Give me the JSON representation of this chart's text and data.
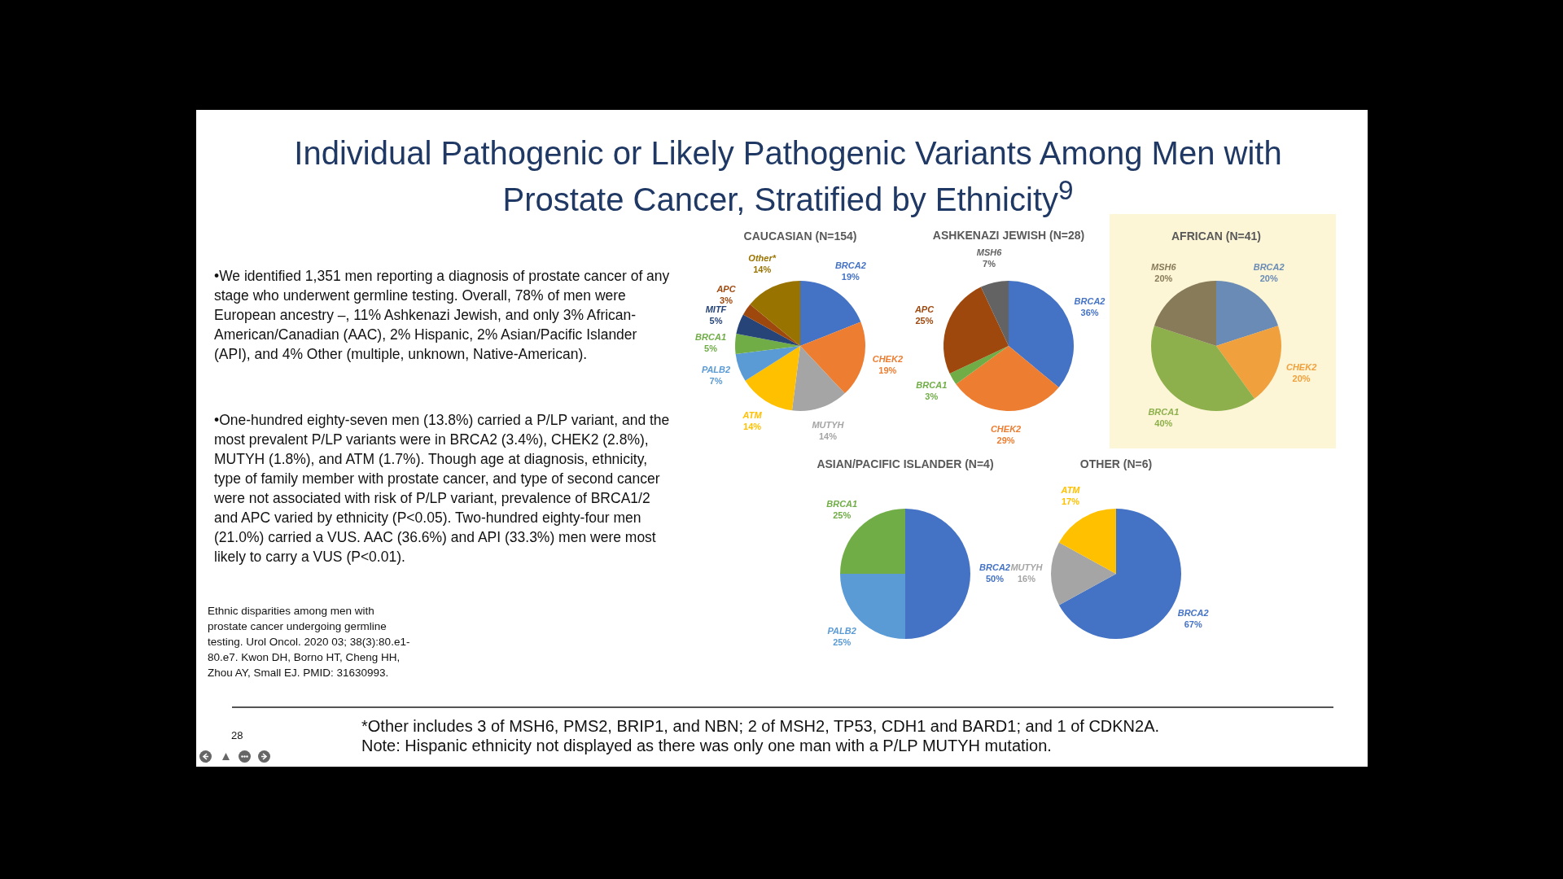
{
  "chart_data": [
    {
      "type": "other",
      "title": "Individual Pathogenic or Likely Pathogenic Variants Among Men with Prostate Cancer, Stratified by Ethnicity$^{9}$",
      "annotations": [
        "•We identified 1,351 men reporting a diagnosis of prostate cancer of any stage who underwent germline testing. Overall, 78% of men were European ancestry –, 11% Ashkenazi Jewish, and only 3% African-American/Canadian (AAC), 2% Hispanic, 2% Asian/Pacific Islander (API), and 4% Other (multiple, unknown, Native-American).",
        "•One-hundred eighty-seven men (13.8%) carried a P/LP variant, and the most prevalent P/LP variants were in BRCA2 (3.4%), CHEK2 (2.8%), MUTYH (1.8%), and ATM (1.7%). Though age at diagnosis, ethnicity, type of family member with prostate cancer, and type of second cancer were not associated with risk of P/LP variant, prevalence of BRCA1/2 and APC varied by ethnicity (P<0.05). Two-hundred eighty-four men (21.0%) carried a VUS. AAC (36.6%) and API (33.3%) men were most likely to carry a VUS (P<0.01).",
        "Ethnic disparities among men with prostate cancer undergoing germline testing. Urol Oncol. 2020 03; 38(3):80.e1-80.e7. Kwon DH, Borno HT, Cheng HH, Zhou AY, Small EJ. PMID: 31630993.",
        "*Other includes 3 of MSH6, PMS2, BRIP1, and NBN; 2 of MSH2, TP53, CDH1 and BARD1; and 1 of CDKN2A.",
        "Note: Hispanic ethnicity not displayed as there was only one man with a P/LP MUTYH mutation.",
        "28"
      ]
    },
    {
      "type": "pie",
      "title": "CAUCASIAN (N=154)",
      "categories": [
        "BRCA2",
        "CHEK2",
        "MUTYH",
        "ATM",
        "PALB2",
        "BRCA1",
        "MITF",
        "APC",
        "Other*"
      ],
      "values": [
        19,
        19,
        14,
        14,
        7,
        5,
        5,
        3,
        14
      ],
      "value_labels": [
        "19%",
        "19%",
        "14%",
        "14%",
        "7%",
        "5%",
        "5%",
        "3%",
        "14%"
      ],
      "colors": [
        "#4472c4",
        "#ed7d31",
        "#a5a5a5",
        "#ffc000",
        "#5b9bd5",
        "#70ad47",
        "#264478",
        "#9e480e",
        "#997300"
      ]
    },
    {
      "type": "pie",
      "title": "ASHKENAZI JEWISH (N=28)",
      "categories": [
        "BRCA2",
        "CHEK2",
        "BRCA1",
        "APC",
        "MSH6"
      ],
      "values": [
        36,
        29,
        3,
        25,
        7
      ],
      "value_labels": [
        "36%",
        "29%",
        "3%",
        "25%",
        "7%"
      ],
      "colors": [
        "#4472c4",
        "#ed7d31",
        "#70ad47",
        "#9e480e",
        "#636363"
      ]
    },
    {
      "type": "pie",
      "title": "AFRICAN (N=41)",
      "categories": [
        "BRCA2",
        "CHEK2",
        "BRCA1",
        "MSH6"
      ],
      "values": [
        20,
        20,
        40,
        20
      ],
      "value_labels": [
        "20%",
        "20%",
        "40%",
        "20%"
      ],
      "colors": [
        "#6a8bb5",
        "#f0a03c",
        "#8db04c",
        "#877b5a"
      ]
    },
    {
      "type": "pie",
      "title": "ASIAN/PACIFIC ISLANDER (N=4)",
      "categories": [
        "BRCA2",
        "PALB2",
        "BRCA1"
      ],
      "values": [
        50,
        25,
        25
      ],
      "value_labels": [
        "50%",
        "25%",
        "25%"
      ],
      "colors": [
        "#4472c4",
        "#5b9bd5",
        "#70ad47"
      ]
    },
    {
      "type": "pie",
      "title": "OTHER (N=6)",
      "categories": [
        "BRCA2",
        "MUTYH",
        "ATM"
      ],
      "values": [
        67,
        16,
        17
      ],
      "value_labels": [
        "67%",
        "16%",
        "17%"
      ],
      "colors": [
        "#4472c4",
        "#a5a5a5",
        "#ffc000"
      ]
    }
  ]
}
